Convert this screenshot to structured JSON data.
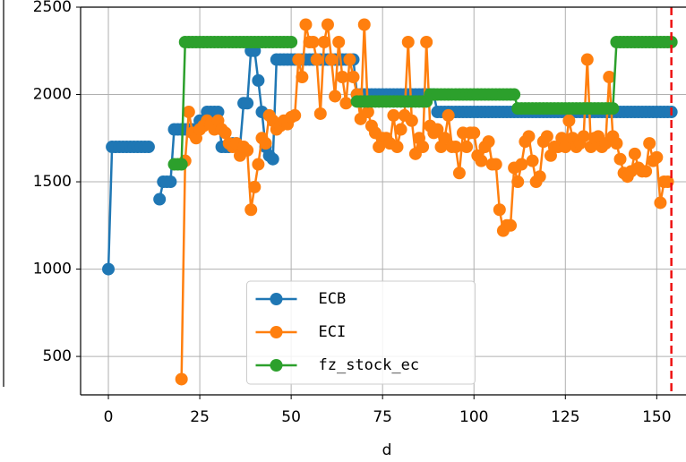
{
  "chart_data": {
    "type": "line",
    "xlabel": "d",
    "x": [
      0,
      1,
      2,
      3,
      4,
      5,
      6,
      7,
      8,
      9,
      10,
      11,
      12,
      13,
      14,
      15,
      16,
      17,
      18,
      19,
      20,
      21,
      22,
      23,
      24,
      25,
      26,
      27,
      28,
      29,
      30,
      31,
      32,
      33,
      34,
      35,
      36,
      37,
      38,
      39,
      40,
      41,
      42,
      43,
      44,
      45,
      46,
      47,
      48,
      49,
      50,
      51,
      52,
      53,
      54,
      55,
      56,
      57,
      58,
      59,
      60,
      61,
      62,
      63,
      64,
      65,
      66,
      67,
      68,
      69,
      70,
      71,
      72,
      73,
      74,
      75,
      76,
      77,
      78,
      79,
      80,
      81,
      82,
      83,
      84,
      85,
      86,
      87,
      88,
      89,
      90,
      91,
      92,
      93,
      94,
      95,
      96,
      97,
      98,
      99,
      100,
      101,
      102,
      103,
      104,
      105,
      106,
      107,
      108,
      109,
      110,
      111,
      112,
      113,
      114,
      115,
      116,
      117,
      118,
      119,
      120,
      121,
      122,
      123,
      124,
      125,
      126,
      127,
      128,
      129,
      130,
      131,
      132,
      133,
      134,
      135,
      136,
      137,
      138,
      139,
      140,
      141,
      142,
      143,
      144,
      145,
      146,
      147,
      148,
      149,
      150,
      151,
      152,
      153,
      154
    ],
    "series": [
      {
        "name": "ECB",
        "color": "#1f77b4",
        "values": [
          1000,
          1700,
          1700,
          1700,
          1700,
          1700,
          1700,
          1700,
          1700,
          1700,
          1700,
          1700,
          null,
          null,
          1400,
          1500,
          1500,
          1500,
          1800,
          1800,
          1800,
          1800,
          1800,
          1800,
          1800,
          1850,
          1850,
          1900,
          1900,
          1900,
          1900,
          1700,
          1700,
          1700,
          1720,
          1720,
          1700,
          1950,
          1950,
          2250,
          2250,
          2080,
          1900,
          1700,
          1650,
          1630,
          2200,
          2200,
          2200,
          2200,
          2200,
          2200,
          2200,
          2200,
          2200,
          2200,
          2200,
          2200,
          2200,
          2200,
          2200,
          2200,
          2200,
          2200,
          2200,
          2200,
          2200,
          2200,
          2000,
          2000,
          2000,
          2000,
          2000,
          2000,
          2000,
          2000,
          2000,
          2000,
          2000,
          2000,
          2000,
          2000,
          2000,
          2000,
          2000,
          2000,
          2000,
          2000,
          2000,
          2000,
          1900,
          1900,
          1900,
          1900,
          1900,
          1900,
          1900,
          1900,
          1900,
          1900,
          1900,
          1900,
          1900,
          1900,
          1900,
          1900,
          1900,
          1900,
          1900,
          1900,
          1900,
          1900,
          1900,
          1900,
          1900,
          1900,
          1900,
          1900,
          1900,
          1900,
          1900,
          1900,
          1900,
          1900,
          1900,
          1900,
          1900,
          1900,
          1900,
          1900,
          1900,
          1900,
          1900,
          1900,
          1900,
          1900,
          1900,
          1900,
          1900,
          1900,
          1900,
          1900,
          1900,
          1900,
          1900,
          1900,
          1900,
          1900,
          1900,
          1900,
          1900,
          1900,
          1900,
          1900,
          1900
        ]
      },
      {
        "name": "ECI",
        "color": "#ff7f0e",
        "values": [
          null,
          null,
          null,
          null,
          null,
          null,
          null,
          null,
          null,
          null,
          null,
          null,
          null,
          null,
          null,
          null,
          null,
          null,
          null,
          null,
          370,
          1620,
          1900,
          1780,
          1750,
          1800,
          1820,
          1850,
          1830,
          1800,
          1850,
          1800,
          1780,
          1720,
          1700,
          1720,
          1650,
          1700,
          1680,
          1340,
          1470,
          1600,
          1750,
          1720,
          1880,
          1850,
          1800,
          1820,
          1850,
          1830,
          1870,
          1880,
          2200,
          2100,
          2400,
          2300,
          2300,
          2200,
          1890,
          2300,
          2400,
          2200,
          1990,
          2300,
          2100,
          1950,
          2200,
          2100,
          2000,
          1860,
          2400,
          1900,
          1820,
          1780,
          1700,
          1750,
          1750,
          1720,
          1880,
          1700,
          1800,
          1880,
          2300,
          1850,
          1660,
          1750,
          1700,
          2300,
          1820,
          1780,
          1800,
          1700,
          1750,
          1880,
          1700,
          1700,
          1550,
          1780,
          1700,
          1780,
          1780,
          1650,
          1620,
          1700,
          1730,
          1600,
          1600,
          1340,
          1220,
          1250,
          1250,
          1580,
          1500,
          1600,
          1730,
          1760,
          1620,
          1500,
          1530,
          1730,
          1760,
          1650,
          1700,
          1700,
          1750,
          1700,
          1850,
          1750,
          1700,
          1720,
          1760,
          2200,
          1700,
          1750,
          1760,
          1700,
          1720,
          2100,
          1760,
          1720,
          1630,
          1550,
          1530,
          1560,
          1660,
          1580,
          1560,
          1560,
          1720,
          1620,
          1640,
          1380,
          1500,
          1500,
          null
        ]
      },
      {
        "name": "fz_stock_ec",
        "color": "#2ca02c",
        "values": [
          null,
          null,
          null,
          null,
          null,
          null,
          null,
          null,
          null,
          null,
          null,
          null,
          null,
          null,
          null,
          null,
          null,
          null,
          1600,
          1600,
          1600,
          2300,
          2300,
          2300,
          2300,
          2300,
          2300,
          2300,
          2300,
          2300,
          2300,
          2300,
          2300,
          2300,
          2300,
          2300,
          2300,
          2300,
          2300,
          2300,
          2300,
          2300,
          2300,
          2300,
          2300,
          2300,
          2300,
          2300,
          2300,
          2300,
          2300,
          null,
          null,
          null,
          null,
          null,
          null,
          null,
          null,
          null,
          null,
          null,
          null,
          null,
          null,
          null,
          null,
          null,
          1960,
          1960,
          1960,
          1960,
          1960,
          1960,
          1960,
          1960,
          1960,
          1960,
          1960,
          1960,
          1960,
          1960,
          1960,
          1960,
          1960,
          1960,
          1960,
          1960,
          2000,
          2000,
          2000,
          2000,
          2000,
          2000,
          2000,
          2000,
          2000,
          2000,
          2000,
          2000,
          2000,
          2000,
          2000,
          2000,
          2000,
          2000,
          2000,
          2000,
          2000,
          2000,
          2000,
          2000,
          1920,
          1920,
          1920,
          1920,
          1920,
          1920,
          1920,
          1920,
          1920,
          1920,
          1920,
          1920,
          1920,
          1920,
          1920,
          1920,
          1920,
          1920,
          1920,
          1920,
          1920,
          1920,
          1920,
          1920,
          1920,
          1920,
          1920,
          2300,
          2300,
          2300,
          2300,
          2300,
          2300,
          2300,
          2300,
          2300,
          2300,
          2300,
          2300,
          2300,
          2300,
          2300,
          2300
        ]
      }
    ],
    "xlim": [
      -7.6,
      158
    ],
    "ylim": [
      280,
      2500
    ],
    "xticks": [
      0,
      25,
      50,
      75,
      100,
      125,
      150
    ],
    "yticks": [
      500,
      1000,
      1500,
      2000,
      2500
    ],
    "grid": true,
    "legend": "lower center",
    "vline_x": 154,
    "vline_color": "#ee1111"
  }
}
